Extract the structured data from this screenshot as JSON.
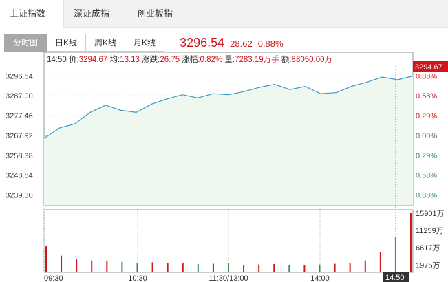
{
  "top_tabs": [
    {
      "label": "上证指数",
      "active": true
    },
    {
      "label": "深证成指",
      "active": false
    },
    {
      "label": "创业板指",
      "active": false
    }
  ],
  "sub_tabs": [
    {
      "label": "分时图",
      "active": true
    },
    {
      "label": "日K线",
      "active": false
    },
    {
      "label": "周K线",
      "active": false
    },
    {
      "label": "月K线",
      "active": false
    }
  ],
  "quote": {
    "last": "3296.54",
    "change": "28.62",
    "change_pct": "0.88%"
  },
  "info_bar": {
    "time": "14:50",
    "price_label": "价:",
    "price": "3294.67",
    "avg_label": "均:",
    "avg": "13.13",
    "change_label": "涨跌:",
    "change": "26.75",
    "pct_label": "涨幅:",
    "pct": "0.82%",
    "volume_label": "量:",
    "volume": "7283.19万手",
    "amount_label": "额:",
    "amount": "88050.00万"
  },
  "cursor_price_label": "3294.67",
  "colors": {
    "up": "#d0151b",
    "down": "#3c8a4e",
    "line": "#3b97c8",
    "fill": "#eef8ee",
    "vol_red": "#d0151b",
    "vol_green": "#3c8a4e"
  },
  "chart_data": {
    "type": "line",
    "title": "",
    "prev_close": 3267.92,
    "y_ticks_left": [
      "3296.54",
      "3287.00",
      "3277.46",
      "3267.92",
      "3258.38",
      "3248.84",
      "3239.30"
    ],
    "y_ticks_right": [
      "0.88%",
      "0.58%",
      "0.29%",
      "0.00%",
      "0.29%",
      "0.58%",
      "0.88%"
    ],
    "ylim": [
      3234.5,
      3301.3
    ],
    "x_ticks": [
      "09:30",
      "10:30",
      "11:30/13:00",
      "14:00",
      "14:50"
    ],
    "cursor_time": "14:50",
    "x": [
      "09:30",
      "09:40",
      "09:50",
      "10:00",
      "10:10",
      "10:20",
      "10:30",
      "10:40",
      "10:50",
      "11:00",
      "11:10",
      "11:20",
      "11:30",
      "13:10",
      "13:20",
      "13:30",
      "13:40",
      "13:50",
      "14:00",
      "14:10",
      "14:20",
      "14:30",
      "14:40",
      "14:50",
      "15:00"
    ],
    "price": [
      3266.5,
      3271.5,
      3273.5,
      3279.0,
      3282.5,
      3280.0,
      3279.0,
      3283.0,
      3285.5,
      3287.5,
      3286.0,
      3288.0,
      3287.5,
      3289.0,
      3291.0,
      3292.5,
      3290.0,
      3291.5,
      3288.0,
      3288.5,
      3291.5,
      3293.5,
      3296.0,
      3294.7,
      3296.5
    ],
    "volume_ticks": [
      "15901万",
      "11259万",
      "6617万",
      "1975万"
    ],
    "volume_max": 15901,
    "volume": [
      7000,
      4500,
      3500,
      3200,
      3000,
      2800,
      2600,
      2700,
      2500,
      2400,
      2200,
      2300,
      2400,
      2000,
      2100,
      2200,
      2000,
      1900,
      2100,
      2300,
      2600,
      3200,
      5500,
      9500,
      15900
    ]
  }
}
